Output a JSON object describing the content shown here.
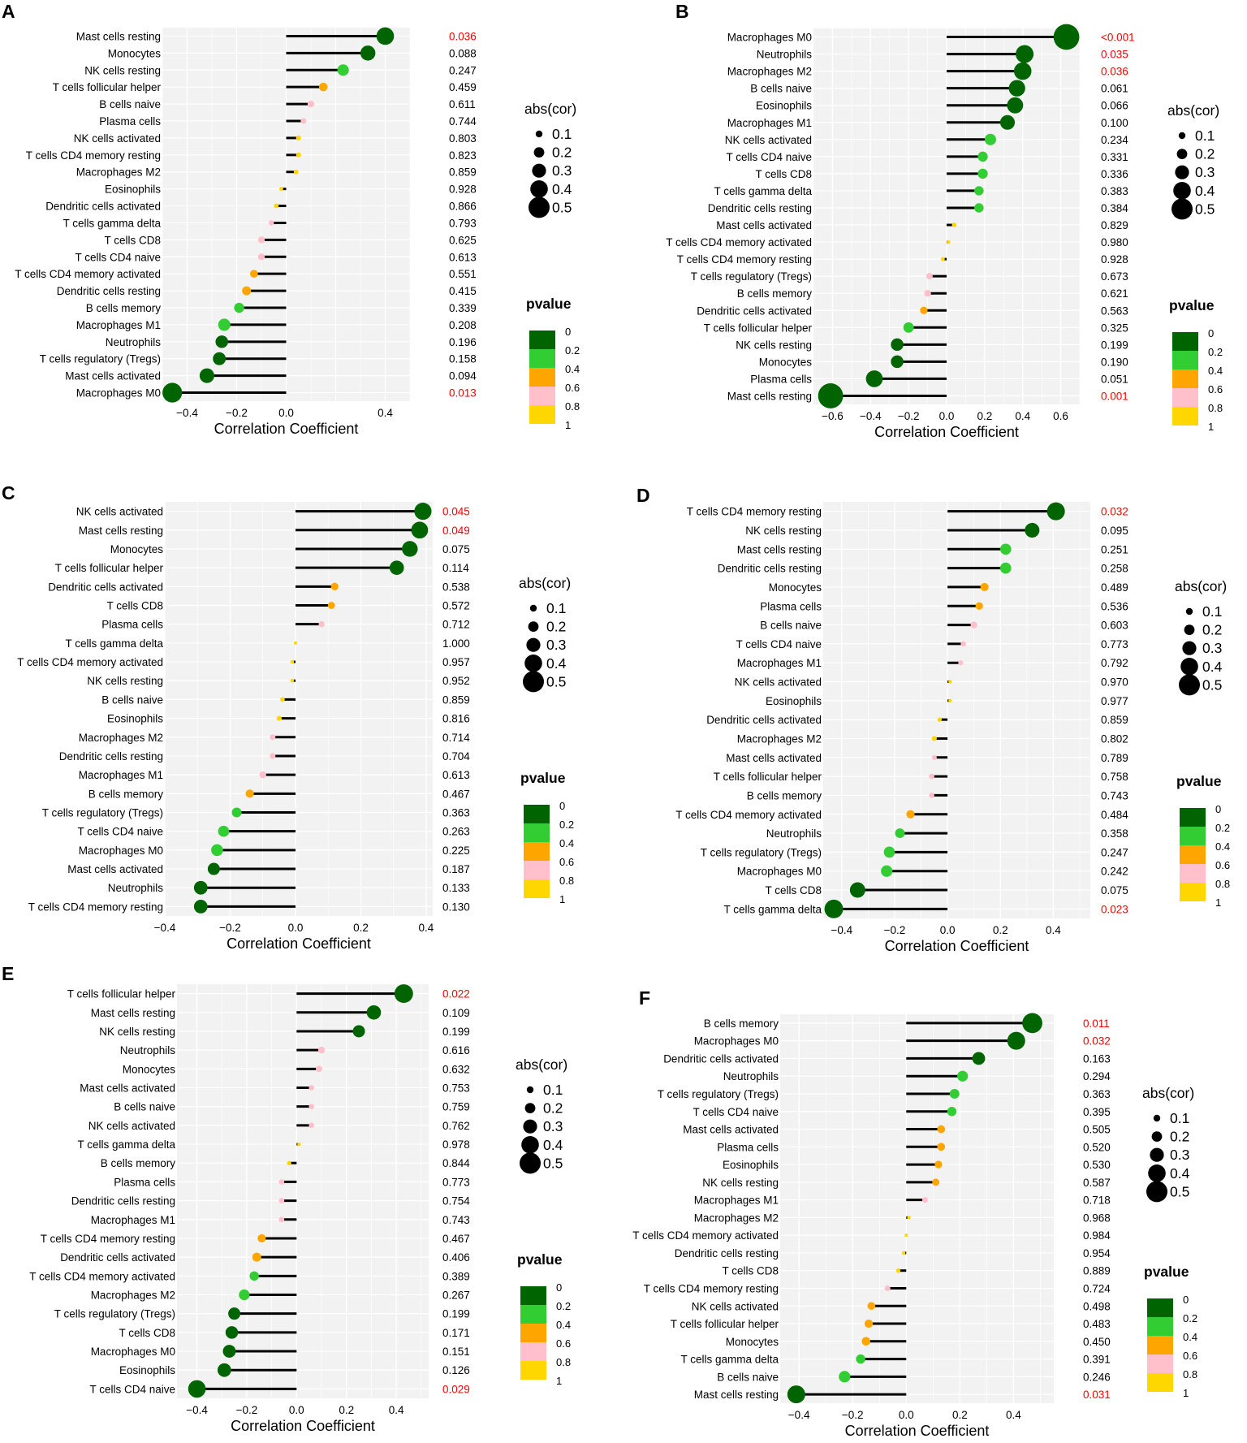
{
  "legend_text": {
    "size_title": "abs(cor)",
    "p_title": "pvalue"
  },
  "size_legend": [
    "0.1",
    "0.2",
    "0.3",
    "0.4",
    "0.5"
  ],
  "p_legend": [
    "0",
    "0.2",
    "0.4",
    "0.6",
    "0.8",
    "1"
  ],
  "colors": {
    "panel_bg": "#f2f2f2",
    "grid": "#ffffff",
    "stem": "#000000",
    "sig_text": "#ff0000",
    "text": "#000000",
    "p_colors": [
      "#006400",
      "#32cd32",
      "#ffa500",
      "#ffc0cb",
      "#ffd700"
    ]
  },
  "chart_data": [
    {
      "type": "lollipop",
      "panel_label": "A",
      "xlabel": "Correlation Coefficient",
      "xlim": [
        -0.5,
        0.5
      ],
      "xticks": [
        -0.4,
        -0.2,
        0.0,
        0.4
      ],
      "xtick_labels": [
        "−0.4",
        "−0.2",
        "0.0",
        "0.4"
      ],
      "categories": [
        "Mast cells resting",
        "Monocytes",
        "NK cells resting",
        "T cells follicular helper",
        "B cells naive",
        "Plasma cells",
        "NK cells activated",
        "T cells CD4 memory resting",
        "Macrophages M2",
        "Eosinophils",
        "Dendritic cells activated",
        "T cells gamma delta",
        "T cells CD8",
        "T cells CD4 naive",
        "T cells CD4 memory activated",
        "Dendritic cells resting",
        "B cells memory",
        "Macrophages M1",
        "Neutrophils",
        "T cells regulatory (Tregs)",
        "Mast cells activated",
        "Macrophages M0"
      ],
      "values": [
        0.4,
        0.33,
        0.23,
        0.15,
        0.1,
        0.07,
        0.05,
        0.05,
        0.04,
        -0.02,
        -0.04,
        -0.06,
        -0.1,
        -0.1,
        -0.13,
        -0.16,
        -0.19,
        -0.25,
        -0.26,
        -0.27,
        -0.32,
        -0.46
      ],
      "pvalues": [
        "0.036",
        "0.088",
        "0.247",
        "0.459",
        "0.611",
        "0.744",
        "0.803",
        "0.823",
        "0.859",
        "0.928",
        "0.866",
        "0.793",
        "0.625",
        "0.613",
        "0.551",
        "0.415",
        "0.339",
        "0.208",
        "0.196",
        "0.158",
        "0.094",
        "0.013"
      ]
    },
    {
      "type": "lollipop",
      "panel_label": "B",
      "xlabel": "Correlation Coefficient",
      "xlim": [
        -0.7,
        0.7
      ],
      "xticks": [
        -0.6,
        -0.4,
        -0.2,
        0.0,
        0.2,
        0.4,
        0.6
      ],
      "xtick_labels": [
        "−0.6",
        "−0.4",
        "−0.2",
        "0.0",
        "0.2",
        "0.4",
        "0.6"
      ],
      "categories": [
        "Macrophages M0",
        "Neutrophils",
        "Macrophages M2",
        "B cells naive",
        "Eosinophils",
        "Macrophages M1",
        "NK cells activated",
        "T cells CD4 naive",
        "T cells CD8",
        "T cells gamma delta",
        "Dendritic cells resting",
        "Mast cells activated",
        "T cells CD4 memory activated",
        "T cells CD4 memory resting",
        "T cells regulatory (Tregs)",
        "B cells memory",
        "Dendritic cells activated",
        "T cells follicular helper",
        "NK cells resting",
        "Monocytes",
        "Plasma cells",
        "Mast cells resting"
      ],
      "values": [
        0.63,
        0.41,
        0.4,
        0.37,
        0.36,
        0.32,
        0.23,
        0.19,
        0.19,
        0.17,
        0.17,
        0.04,
        0.01,
        -0.02,
        -0.09,
        -0.1,
        -0.12,
        -0.2,
        -0.26,
        -0.26,
        -0.38,
        -0.61
      ],
      "pvalues": [
        "<0.001",
        "0.035",
        "0.036",
        "0.061",
        "0.066",
        "0.100",
        "0.234",
        "0.331",
        "0.336",
        "0.383",
        "0.384",
        "0.829",
        "0.980",
        "0.928",
        "0.673",
        "0.621",
        "0.563",
        "0.325",
        "0.199",
        "0.190",
        "0.051",
        "0.001"
      ]
    },
    {
      "type": "lollipop",
      "panel_label": "C",
      "xlabel": "Correlation Coefficient",
      "xlim": [
        -0.4,
        0.42
      ],
      "xticks": [
        -0.4,
        -0.2,
        0.0,
        0.2,
        0.4
      ],
      "xtick_labels": [
        "−0.4",
        "−0.2",
        "0.0",
        "0.2",
        "0.4"
      ],
      "categories": [
        "NK cells activated",
        "Mast cells resting",
        "Monocytes",
        "T cells follicular helper",
        "Dendritic cells activated",
        "T cells CD8",
        "Plasma cells",
        "T cells gamma delta",
        "T cells CD4 memory activated",
        "NK cells resting",
        "B cells naive",
        "Eosinophils",
        "Macrophages M2",
        "Dendritic cells resting",
        "Macrophages M1",
        "B cells memory",
        "T cells regulatory (Tregs)",
        "T cells CD4 naive",
        "Macrophages M0",
        "Mast cells activated",
        "Neutrophils",
        "T cells CD4 memory resting"
      ],
      "values": [
        0.39,
        0.38,
        0.35,
        0.31,
        0.12,
        0.11,
        0.08,
        0.0,
        -0.01,
        -0.01,
        -0.04,
        -0.05,
        -0.07,
        -0.07,
        -0.1,
        -0.14,
        -0.18,
        -0.22,
        -0.24,
        -0.25,
        -0.29,
        -0.29
      ],
      "pvalues": [
        "0.045",
        "0.049",
        "0.075",
        "0.114",
        "0.538",
        "0.572",
        "0.712",
        "1.000",
        "0.957",
        "0.952",
        "0.859",
        "0.816",
        "0.714",
        "0.704",
        "0.613",
        "0.467",
        "0.363",
        "0.263",
        "0.225",
        "0.187",
        "0.133",
        "0.130"
      ]
    },
    {
      "type": "lollipop",
      "panel_label": "D",
      "xlabel": "Correlation Coefficient",
      "xlim": [
        -0.47,
        0.54
      ],
      "xticks": [
        -0.4,
        -0.2,
        0.0,
        0.2,
        0.4
      ],
      "xtick_labels": [
        "−0.4",
        "−0.2",
        "0.0",
        "0.2",
        "0.4"
      ],
      "categories": [
        "T cells CD4 memory resting",
        "NK cells resting",
        "Mast cells resting",
        "Dendritic cells resting",
        "Monocytes",
        "Plasma cells",
        "B cells naive",
        "T cells CD4 naive",
        "Macrophages M1",
        "NK cells activated",
        "Eosinophils",
        "Dendritic cells activated",
        "Macrophages M2",
        "Mast cells activated",
        "T cells follicular helper",
        "B cells memory",
        "T cells CD4 memory activated",
        "Neutrophils",
        "T cells regulatory (Tregs)",
        "Macrophages M0",
        "T cells CD8",
        "T cells gamma delta"
      ],
      "values": [
        0.41,
        0.32,
        0.22,
        0.22,
        0.14,
        0.12,
        0.1,
        0.06,
        0.05,
        0.01,
        0.01,
        -0.03,
        -0.05,
        -0.05,
        -0.06,
        -0.06,
        -0.14,
        -0.18,
        -0.22,
        -0.23,
        -0.34,
        -0.43
      ],
      "pvalues": [
        "0.032",
        "0.095",
        "0.251",
        "0.258",
        "0.489",
        "0.536",
        "0.603",
        "0.773",
        "0.792",
        "0.970",
        "0.977",
        "0.859",
        "0.802",
        "0.789",
        "0.758",
        "0.743",
        "0.484",
        "0.358",
        "0.247",
        "0.242",
        "0.075",
        "0.023"
      ]
    },
    {
      "type": "lollipop",
      "panel_label": "E",
      "xlabel": "Correlation Coefficient",
      "xlim": [
        -0.48,
        0.53
      ],
      "xticks": [
        -0.4,
        -0.2,
        0.0,
        0.2,
        0.4
      ],
      "xtick_labels": [
        "−0.4",
        "−0.2",
        "0.0",
        "0.2",
        "0.4"
      ],
      "categories": [
        "T cells follicular helper",
        "Mast cells resting",
        "NK cells resting",
        "Neutrophils",
        "Monocytes",
        "Mast cells activated",
        "B cells naive",
        "NK cells activated",
        "T cells gamma delta",
        "B cells memory",
        "Plasma cells",
        "Dendritic cells resting",
        "Macrophages M1",
        "T cells CD4 memory resting",
        "Dendritic cells activated",
        "T cells CD4 memory activated",
        "Macrophages M2",
        "T cells regulatory (Tregs)",
        "T cells CD8",
        "Macrophages M0",
        "Eosinophils",
        "T cells CD4 naive"
      ],
      "values": [
        0.43,
        0.31,
        0.25,
        0.1,
        0.09,
        0.06,
        0.06,
        0.06,
        0.01,
        -0.03,
        -0.06,
        -0.06,
        -0.06,
        -0.14,
        -0.16,
        -0.17,
        -0.21,
        -0.25,
        -0.26,
        -0.27,
        -0.29,
        -0.4
      ],
      "pvalues": [
        "0.022",
        "0.109",
        "0.199",
        "0.616",
        "0.632",
        "0.753",
        "0.759",
        "0.762",
        "0.978",
        "0.844",
        "0.773",
        "0.754",
        "0.743",
        "0.467",
        "0.406",
        "0.389",
        "0.267",
        "0.199",
        "0.171",
        "0.151",
        "0.126",
        "0.029"
      ]
    },
    {
      "type": "lollipop",
      "panel_label": "F",
      "xlabel": "Correlation Coefficient",
      "xlim": [
        -0.47,
        0.55
      ],
      "xticks": [
        -0.4,
        -0.2,
        0.0,
        0.2,
        0.4
      ],
      "xtick_labels": [
        "−0.4",
        "−0.2",
        "0.0",
        "0.2",
        "0.4"
      ],
      "categories": [
        "B cells memory",
        "Macrophages M0",
        "Dendritic cells activated",
        "Neutrophils",
        "T cells regulatory (Tregs)",
        "T cells CD4 naive",
        "Mast cells activated",
        "Plasma cells",
        "Eosinophils",
        "NK cells resting",
        "Macrophages M1",
        "Macrophages M2",
        "T cells CD4 memory activated",
        "Dendritic cells resting",
        "T cells CD8",
        "T cells CD4 memory resting",
        "NK cells activated",
        "T cells follicular helper",
        "Monocytes",
        "T cells gamma delta",
        "B cells naive",
        "Mast cells resting"
      ],
      "values": [
        0.47,
        0.41,
        0.27,
        0.21,
        0.18,
        0.17,
        0.13,
        0.13,
        0.12,
        0.11,
        0.07,
        0.01,
        0.0,
        -0.01,
        -0.03,
        -0.07,
        -0.13,
        -0.14,
        -0.15,
        -0.17,
        -0.23,
        -0.41
      ],
      "pvalues": [
        "0.011",
        "0.032",
        "0.163",
        "0.294",
        "0.363",
        "0.395",
        "0.505",
        "0.520",
        "0.530",
        "0.587",
        "0.718",
        "0.968",
        "0.984",
        "0.954",
        "0.889",
        "0.724",
        "0.498",
        "0.483",
        "0.450",
        "0.391",
        "0.246",
        "0.031"
      ]
    }
  ]
}
